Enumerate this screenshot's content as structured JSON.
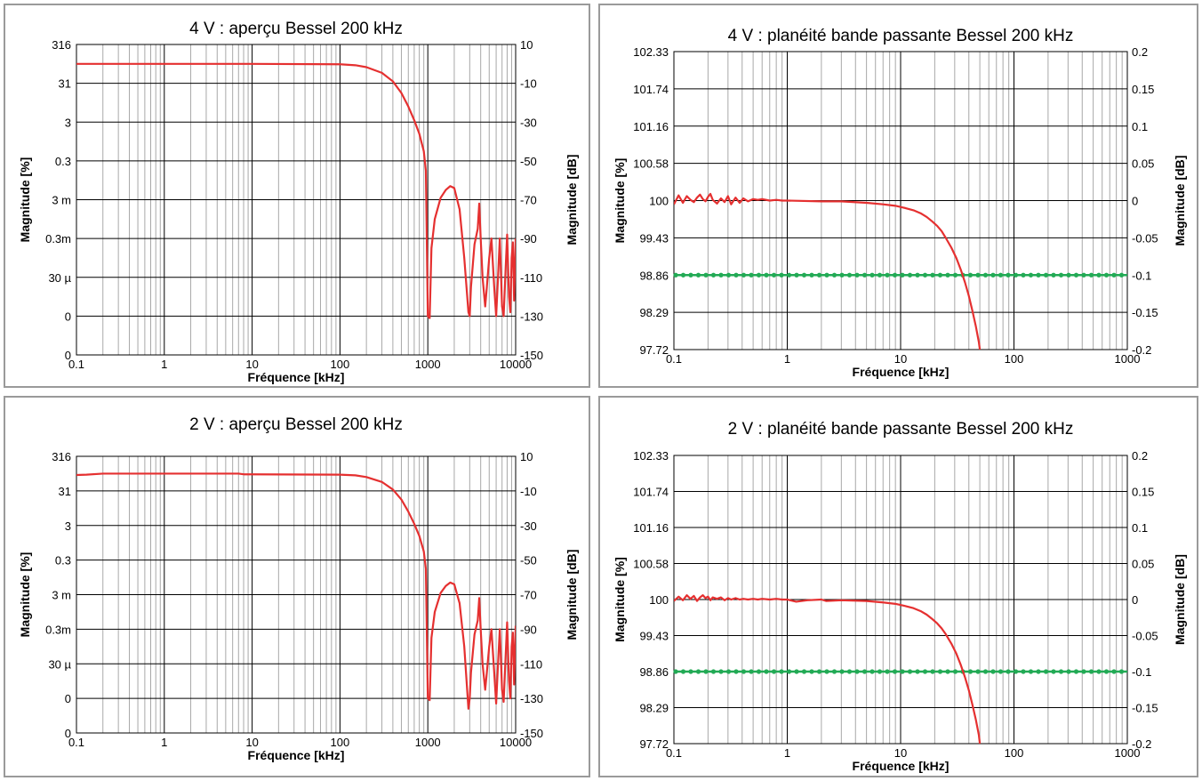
{
  "colors": {
    "response": "#e53030",
    "limit": "#22aa55",
    "grid_major": "#000000",
    "grid_minor": "#a8a8a8"
  },
  "chart_data": [
    {
      "type": "line",
      "title": "4 V : aperçu Bessel 200 kHz",
      "xlabel": "Fréquence [kHz]",
      "ylabel_left": "Magnitude [%]",
      "ylabel_right": "Magnitude [dB]",
      "x_scale": "log",
      "xlim": [
        0.1,
        10000
      ],
      "x_tick_labels": [
        "0.1",
        "1",
        "10",
        "100",
        "1000",
        "10000"
      ],
      "ylim": [
        -150,
        10
      ],
      "y_tick_labels_left": [
        "316",
        "31",
        "3",
        "0.3",
        "3 m",
        "0.3m",
        "30 µ",
        "0",
        "0"
      ],
      "y_tick_labels_right": [
        "10",
        "-10",
        "-30",
        "-50",
        "-70",
        "-90",
        "-110",
        "-130",
        "-150"
      ],
      "grid": true,
      "series": [
        {
          "x": [
            0.1,
            1,
            10,
            100,
            150,
            200,
            300,
            400,
            500,
            600,
            700,
            800,
            900,
            950,
            1000,
            1050,
            1100,
            1200,
            1400,
            1600,
            1800,
            2000,
            2300,
            2600,
            2900,
            3000,
            3100,
            3400,
            3700,
            3850,
            4000,
            4200,
            4500,
            4700,
            5000,
            5300,
            5700,
            6000,
            6300,
            6600,
            7000,
            7300,
            7700,
            8000,
            8400,
            8700,
            9000,
            9300,
            9600,
            10000
          ],
          "y": [
            0,
            0,
            0,
            -0.2,
            -0.7,
            -1.7,
            -4.6,
            -9.0,
            -15,
            -22,
            -29,
            -36,
            -45,
            -55,
            -130,
            -131,
            -95,
            -80,
            -69,
            -65,
            -63,
            -64,
            -75,
            -100,
            -128,
            -130,
            -115,
            -93,
            -85,
            -72,
            -90,
            -110,
            -125,
            -115,
            -100,
            -90,
            -115,
            -130,
            -110,
            -90,
            -125,
            -130,
            -105,
            -88,
            -120,
            -128,
            -100,
            -92,
            -122,
            -90
          ]
        }
      ]
    },
    {
      "type": "line",
      "title": "4 V : planéité bande passante Bessel 200 kHz",
      "xlabel": "Fréquence [kHz]",
      "ylabel_left": "Magnitude [%]",
      "ylabel_right": "Magnitude [dB]",
      "x_scale": "log",
      "xlim": [
        0.1,
        1000
      ],
      "x_tick_labels": [
        "0.1",
        "1",
        "10",
        "100",
        "1000"
      ],
      "ylim": [
        -0.2,
        0.2
      ],
      "y_tick_labels_left": [
        "102.33",
        "101.74",
        "101.16",
        "100.58",
        "100",
        "99.43",
        "98.86",
        "98.29",
        "97.72"
      ],
      "y_tick_labels_right": [
        "0.2",
        "0.15",
        "0.1",
        "0.05",
        "0",
        "-0.05",
        "-0.1",
        "-0.15",
        "-0.2"
      ],
      "grid": true,
      "limit_line": {
        "y": -0.1
      },
      "series": [
        {
          "x": [
            0.1,
            0.11,
            0.12,
            0.13,
            0.14,
            0.15,
            0.16,
            0.17,
            0.18,
            0.19,
            0.2,
            0.21,
            0.22,
            0.24,
            0.26,
            0.28,
            0.3,
            0.32,
            0.35,
            0.38,
            0.41,
            0.45,
            0.5,
            0.55,
            0.6,
            0.7,
            0.8,
            0.9,
            1,
            2,
            3,
            5,
            7,
            9,
            11,
            13,
            15,
            17,
            19,
            21,
            23,
            25,
            28,
            31,
            34,
            37,
            40,
            43,
            46,
            49,
            50
          ],
          "y": [
            -0.005,
            0.007,
            -0.003,
            0.006,
            0.001,
            -0.002,
            0.004,
            0.008,
            0.002,
            -0.001,
            0.005,
            0.009,
            0.001,
            -0.004,
            0.003,
            -0.002,
            0.006,
            -0.005,
            0.004,
            -0.003,
            0.003,
            -0.001,
            0.002,
            0.001,
            0.002,
            0.0,
            0.001,
            0.0,
            0.0,
            -0.001,
            -0.001,
            -0.003,
            -0.005,
            -0.007,
            -0.01,
            -0.013,
            -0.017,
            -0.022,
            -0.028,
            -0.034,
            -0.041,
            -0.05,
            -0.063,
            -0.077,
            -0.093,
            -0.11,
            -0.128,
            -0.148,
            -0.168,
            -0.19,
            -0.2
          ]
        }
      ]
    },
    {
      "type": "line",
      "title": "2 V : aperçu Bessel 200 kHz",
      "xlabel": "Fréquence [kHz]",
      "ylabel_left": "Magnitude [%]",
      "ylabel_right": "Magnitude [dB]",
      "x_scale": "log",
      "xlim": [
        0.1,
        10000
      ],
      "x_tick_labels": [
        "0.1",
        "1",
        "10",
        "100",
        "1000",
        "10000"
      ],
      "ylim": [
        -150,
        10
      ],
      "y_tick_labels_left": [
        "316",
        "31",
        "3",
        "0.3",
        "3 m",
        "0.3m",
        "30 µ",
        "0",
        "0"
      ],
      "y_tick_labels_right": [
        "10",
        "-10",
        "-30",
        "-50",
        "-70",
        "-90",
        "-110",
        "-130",
        "-150"
      ],
      "grid": true,
      "series": [
        {
          "x": [
            0.1,
            0.13,
            0.2,
            1,
            7,
            8,
            10,
            100,
            150,
            200,
            300,
            400,
            500,
            600,
            700,
            800,
            900,
            950,
            1000,
            1050,
            1100,
            1200,
            1400,
            1600,
            1800,
            2000,
            2300,
            2600,
            2900,
            3000,
            3100,
            3400,
            3700,
            3850,
            4000,
            4200,
            4500,
            4700,
            5000,
            5300,
            5700,
            6000,
            6300,
            6600,
            7000,
            7300,
            7700,
            8000,
            8400,
            8700,
            9000,
            9300,
            9600,
            10000
          ],
          "y": [
            -0.8,
            -0.6,
            0,
            0,
            0,
            -0.4,
            -0.4,
            -0.6,
            -1.0,
            -2.0,
            -4.8,
            -9.2,
            -15,
            -22,
            -29,
            -36,
            -45,
            -55,
            -130,
            -131,
            -95,
            -80,
            -69,
            -65,
            -63,
            -64,
            -75,
            -100,
            -136,
            -130,
            -115,
            -93,
            -85,
            -72,
            -90,
            -110,
            -125,
            -115,
            -100,
            -90,
            -115,
            -133,
            -110,
            -90,
            -125,
            -132,
            -105,
            -86,
            -120,
            -130,
            -100,
            -92,
            -122,
            -88
          ]
        }
      ]
    },
    {
      "type": "line",
      "title": "2 V : planéité bande passante Bessel 200 kHz",
      "xlabel": "Fréquence [kHz]",
      "ylabel_left": "Magnitude [%]",
      "ylabel_right": "Magnitude [dB]",
      "x_scale": "log",
      "xlim": [
        0.1,
        1000
      ],
      "x_tick_labels": [
        "0.1",
        "1",
        "10",
        "100",
        "1000"
      ],
      "ylim": [
        -0.2,
        0.2
      ],
      "y_tick_labels_left": [
        "102.33",
        "101.74",
        "101.16",
        "100.58",
        "100",
        "99.43",
        "98.86",
        "98.29",
        "97.72"
      ],
      "y_tick_labels_right": [
        "0.2",
        "0.15",
        "0.1",
        "0.05",
        "0",
        "-0.05",
        "-0.1",
        "-0.15",
        "-0.2"
      ],
      "grid": true,
      "limit_line": {
        "y": -0.1
      },
      "series": [
        {
          "x": [
            0.1,
            0.11,
            0.12,
            0.13,
            0.14,
            0.15,
            0.16,
            0.17,
            0.18,
            0.19,
            0.2,
            0.21,
            0.22,
            0.24,
            0.26,
            0.28,
            0.3,
            0.32,
            0.35,
            0.38,
            0.41,
            0.45,
            0.5,
            0.55,
            0.6,
            0.7,
            0.8,
            0.9,
            1,
            1.2,
            1.5,
            2,
            2.2,
            3,
            5,
            7,
            9,
            11,
            13,
            15,
            17,
            19,
            21,
            23,
            25,
            28,
            31,
            34,
            37,
            40,
            43,
            46,
            49,
            50
          ],
          "y": [
            -0.002,
            0.004,
            -0.001,
            0.006,
            0.001,
            0.005,
            -0.002,
            0.003,
            0.006,
            0.002,
            0.004,
            -0.001,
            0.003,
            0.001,
            0.003,
            -0.001,
            0.002,
            0.0,
            0.002,
            0.0,
            0.001,
            0.0,
            0.001,
            0.0,
            0.001,
            0.0,
            0.001,
            0.0,
            0.0,
            -0.003,
            -0.001,
            0.0,
            -0.002,
            -0.001,
            -0.002,
            -0.004,
            -0.006,
            -0.009,
            -0.012,
            -0.016,
            -0.021,
            -0.027,
            -0.033,
            -0.04,
            -0.048,
            -0.061,
            -0.075,
            -0.091,
            -0.108,
            -0.126,
            -0.146,
            -0.166,
            -0.188,
            -0.2
          ]
        }
      ]
    }
  ]
}
